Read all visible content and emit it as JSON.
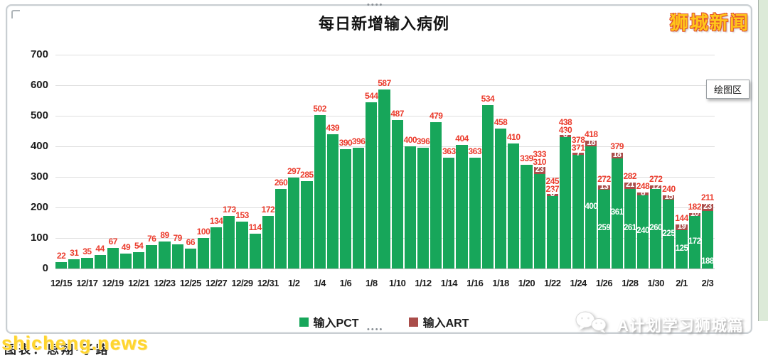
{
  "header": {
    "title": "每日新增输入病例",
    "brand": "狮城新闻"
  },
  "window": {
    "tooltip": "绘图区"
  },
  "legend": [
    {
      "label": "输入PCT",
      "color": "#17A65A"
    },
    {
      "label": "输入ART",
      "color": "#AA4D4A"
    }
  ],
  "footer": {
    "credit": "图表：思翔·子路",
    "watermark": "shicheng.news",
    "channel": "A计划学习狮城篇"
  },
  "chart_data": {
    "type": "bar",
    "stacked": true,
    "title": "每日新增输入病例",
    "xlabel": "",
    "ylabel": "",
    "ylim": [
      0,
      700
    ],
    "y_ticks": [
      0,
      100,
      200,
      300,
      400,
      500,
      600,
      700
    ],
    "x_tick_every": 2,
    "grid": true,
    "legend_position": "bottom",
    "series_names": [
      "输入PCT",
      "输入ART"
    ],
    "colors": {
      "pct": "#17A65A",
      "art": "#AA4D4A",
      "total_label": "#EB3C2D"
    },
    "bars": [
      {
        "date": "12/15",
        "pct": 22,
        "art": 0,
        "total": 22,
        "pct_label": "none"
      },
      {
        "date": "12/16",
        "pct": 31,
        "art": 0,
        "total": 31,
        "pct_label": "none"
      },
      {
        "date": "12/17",
        "pct": 35,
        "art": 0,
        "total": 35,
        "pct_label": "none"
      },
      {
        "date": "12/18",
        "pct": 44,
        "art": 0,
        "total": 44,
        "pct_label": "none"
      },
      {
        "date": "12/19",
        "pct": 67,
        "art": 0,
        "total": 67,
        "pct_label": "none"
      },
      {
        "date": "12/20",
        "pct": 49,
        "art": 0,
        "total": 49,
        "pct_label": "none"
      },
      {
        "date": "12/21",
        "pct": 54,
        "art": 0,
        "total": 54,
        "pct_label": "none"
      },
      {
        "date": "12/22",
        "pct": 76,
        "art": 0,
        "total": 76,
        "pct_label": "none"
      },
      {
        "date": "12/23",
        "pct": 89,
        "art": 0,
        "total": 89,
        "pct_label": "none"
      },
      {
        "date": "12/24",
        "pct": 79,
        "art": 0,
        "total": 79,
        "pct_label": "none"
      },
      {
        "date": "12/25",
        "pct": 66,
        "art": 0,
        "total": 66,
        "pct_label": "none"
      },
      {
        "date": "12/26",
        "pct": 100,
        "art": 0,
        "total": 100,
        "pct_label": "none"
      },
      {
        "date": "12/27",
        "pct": 134,
        "art": 0,
        "total": 134,
        "pct_label": "none"
      },
      {
        "date": "12/28",
        "pct": 173,
        "art": 0,
        "total": 173,
        "pct_label": "none"
      },
      {
        "date": "12/29",
        "pct": 153,
        "art": 0,
        "total": 153,
        "pct_label": "none"
      },
      {
        "date": "12/30",
        "pct": 114,
        "art": 0,
        "total": 114,
        "pct_label": "none"
      },
      {
        "date": "12/31",
        "pct": 172,
        "art": 0,
        "total": 172,
        "pct_label": "none"
      },
      {
        "date": "1/1",
        "pct": 260,
        "art": 0,
        "total": 260,
        "pct_label": "none"
      },
      {
        "date": "1/2",
        "pct": 297,
        "art": 0,
        "total": 297,
        "pct_label": "none"
      },
      {
        "date": "1/3",
        "pct": 285,
        "art": 0,
        "total": 285,
        "pct_label": "none"
      },
      {
        "date": "1/4",
        "pct": 502,
        "art": 0,
        "total": 502,
        "pct_label": "none"
      },
      {
        "date": "1/5",
        "pct": 439,
        "art": 0,
        "total": 439,
        "pct_label": "none"
      },
      {
        "date": "1/6",
        "pct": 390,
        "art": 0,
        "total": 390,
        "pct_label": "none"
      },
      {
        "date": "1/7",
        "pct": 396,
        "art": 0,
        "total": 396,
        "pct_label": "none"
      },
      {
        "date": "1/8",
        "pct": 544,
        "art": 0,
        "total": 544,
        "pct_label": "none"
      },
      {
        "date": "1/9",
        "pct": 587,
        "art": 0,
        "total": 587,
        "pct_label": "none"
      },
      {
        "date": "1/10",
        "pct": 487,
        "art": 0,
        "total": 487,
        "pct_label": "none"
      },
      {
        "date": "1/11",
        "pct": 400,
        "art": 0,
        "total": 400,
        "pct_label": "none"
      },
      {
        "date": "1/12",
        "pct": 396,
        "art": 0,
        "total": 396,
        "pct_label": "none"
      },
      {
        "date": "1/13",
        "pct": 479,
        "art": 0,
        "total": 479,
        "pct_label": "none"
      },
      {
        "date": "1/14",
        "pct": 363,
        "art": 0,
        "total": 363,
        "pct_label": "none"
      },
      {
        "date": "1/15",
        "pct": 404,
        "art": 0,
        "total": 404,
        "pct_label": "none"
      },
      {
        "date": "1/16",
        "pct": 363,
        "art": 0,
        "total": 363,
        "pct_label": "none"
      },
      {
        "date": "1/17",
        "pct": 534,
        "art": 0,
        "total": 534,
        "pct_label": "none"
      },
      {
        "date": "1/18",
        "pct": 458,
        "art": 0,
        "total": 458,
        "pct_label": "none"
      },
      {
        "date": "1/19",
        "pct": 410,
        "art": 0,
        "total": 410,
        "pct_label": "none"
      },
      {
        "date": "1/20",
        "pct": 339,
        "art": 0,
        "total": 339,
        "pct_label": "none"
      },
      {
        "date": "1/21",
        "pct": 310,
        "art": 23,
        "total": 333,
        "pct_label": "top"
      },
      {
        "date": "1/22",
        "pct": 237,
        "art": 8,
        "total": 245,
        "pct_label": "top"
      },
      {
        "date": "1/23",
        "pct": 430,
        "art": 8,
        "total": 438,
        "pct_label": "top"
      },
      {
        "date": "1/24",
        "pct": 371,
        "art": 7,
        "total": 378,
        "pct_label": "top"
      },
      {
        "date": "1/25",
        "pct": 400,
        "art": 18,
        "total": 418,
        "pct_label": "center"
      },
      {
        "date": "1/26",
        "pct": 259,
        "art": 13,
        "total": 272,
        "pct_label": "center"
      },
      {
        "date": "1/27",
        "pct": 361,
        "art": 18,
        "total": 379,
        "pct_label": "center"
      },
      {
        "date": "1/28",
        "pct": 261,
        "art": 21,
        "total": 282,
        "pct_label": "center"
      },
      {
        "date": "1/29",
        "pct": 240,
        "art": 8,
        "total": 248,
        "pct_label": "center"
      },
      {
        "date": "1/30",
        "pct": 260,
        "art": 12,
        "total": 272,
        "pct_label": "center"
      },
      {
        "date": "1/31",
        "pct": 225,
        "art": 15,
        "total": 240,
        "pct_label": "center"
      },
      {
        "date": "2/1",
        "pct": 125,
        "art": 19,
        "total": 144,
        "pct_label": "center"
      },
      {
        "date": "2/2",
        "pct": 172,
        "art": 10,
        "total": 182,
        "pct_label": "center"
      },
      {
        "date": "2/3",
        "pct": 188,
        "art": 23,
        "total": 211,
        "pct_label": "bottom"
      }
    ]
  }
}
